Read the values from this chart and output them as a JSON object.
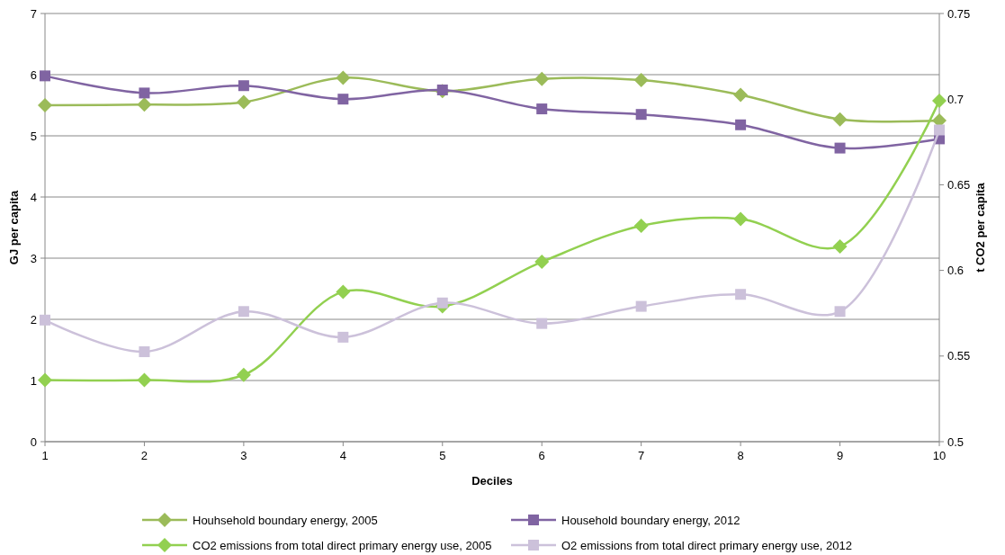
{
  "chart_data": {
    "type": "line",
    "xlabel": "Deciles",
    "ylabel": "GJ per capita",
    "y2label": "t CO2 per capita",
    "x": [
      1,
      2,
      3,
      4,
      5,
      6,
      7,
      8,
      9,
      10
    ],
    "xlim": [
      1,
      10
    ],
    "xticks": [
      1,
      2,
      3,
      4,
      5,
      6,
      7,
      8,
      9,
      10
    ],
    "ylim": [
      0,
      7
    ],
    "yticks": [
      0,
      1,
      2,
      3,
      4,
      5,
      6,
      7
    ],
    "y2lim": [
      0.5,
      0.75
    ],
    "y2ticks": [
      0.5,
      0.55,
      0.6,
      0.65,
      0.7,
      0.75
    ],
    "grid": "y",
    "legend": "bottom",
    "series": [
      {
        "name": "Houhsehold boundary energy, 2005",
        "color": "#9bbb59",
        "marker": "diamond",
        "values": [
          5.5,
          5.51,
          5.55,
          5.95,
          5.73,
          5.93,
          5.91,
          5.67,
          5.27,
          5.25
        ]
      },
      {
        "name": "Household boundary energy, 2012",
        "color": "#8064a2",
        "marker": "square",
        "values": [
          5.98,
          5.7,
          5.82,
          5.6,
          5.75,
          5.44,
          5.35,
          5.18,
          4.8,
          4.95
        ]
      },
      {
        "name": "CO2 emissions from total direct primary energy use, 2005",
        "color": "#92d050",
        "marker": "diamond",
        "axis": "y2",
        "values": [
          0.536,
          0.536,
          0.539,
          0.5875,
          0.579,
          0.605,
          0.626,
          0.63,
          0.614,
          0.699
        ]
      },
      {
        "name": "O2 emissions from total direct primary energy use, 2012",
        "color": "#ccc1da",
        "marker": "square",
        "axis": "y2",
        "values": [
          0.571,
          0.5525,
          0.576,
          0.561,
          0.581,
          0.569,
          0.579,
          0.586,
          0.576,
          0.682
        ]
      }
    ]
  }
}
